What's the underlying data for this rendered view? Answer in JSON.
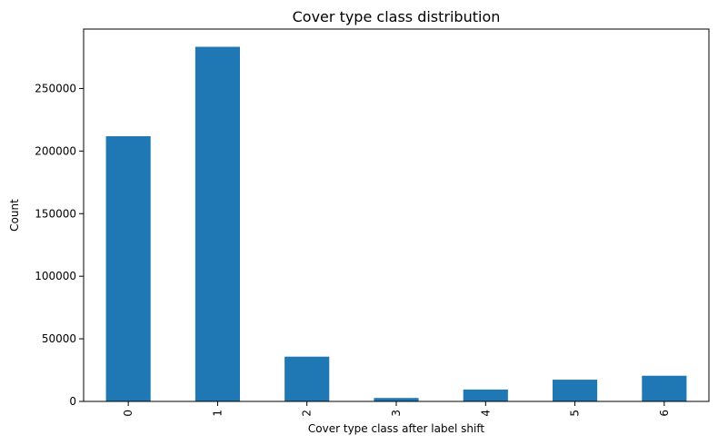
{
  "chart_data": {
    "type": "bar",
    "title": "Cover type class distribution",
    "xlabel": "Cover type class after label shift",
    "ylabel": "Count",
    "categories": [
      "0",
      "1",
      "2",
      "3",
      "4",
      "5",
      "6"
    ],
    "values": [
      211840,
      283301,
      35754,
      2747,
      9493,
      17367,
      20510
    ],
    "ylim": [
      0,
      297466
    ],
    "yticks": [
      0,
      50000,
      100000,
      150000,
      200000,
      250000
    ],
    "ytick_labels": [
      "0",
      "50000",
      "100000",
      "150000",
      "200000",
      "250000"
    ],
    "bar_color": "#1f77b4",
    "grid": false,
    "legend": "none",
    "xtick_rotation": "vertical"
  }
}
